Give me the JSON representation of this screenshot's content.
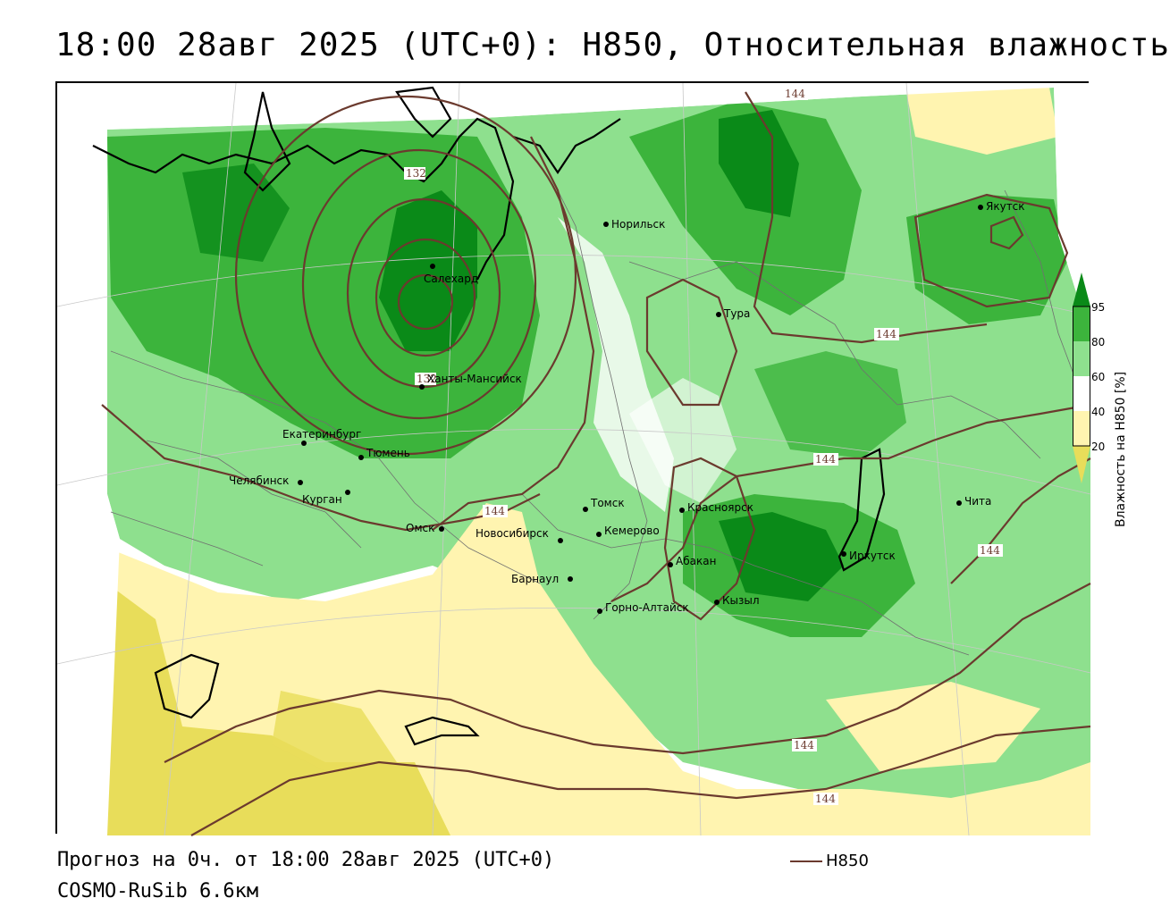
{
  "header": {
    "title": "18:00 28авг 2025 (UTC+0): H850, Относительная влажность"
  },
  "footer": {
    "forecast": "Прогноз на 0ч. от 18:00 28авг 2025 (UTC+0)",
    "model": "COSMO-RuSib 6.6км",
    "legend_label": "H850"
  },
  "colorbar": {
    "title": "Влажность на H850 [%]",
    "ticks": [
      "95",
      "80",
      "60",
      "40",
      "20"
    ],
    "colors": [
      "#0a8a18",
      "#3cb43c",
      "#8ee08e",
      "#ffffff",
      "#fff4b0",
      "#e8dd5a"
    ]
  },
  "colors": {
    "contour": "#6b3a2e",
    "coast": "#000000",
    "border": "#808080"
  },
  "cities": [
    {
      "name": "Норильск"
    },
    {
      "name": "Салехард"
    },
    {
      "name": "Тура"
    },
    {
      "name": "Якутск"
    },
    {
      "name": "Ханты-Мансийск"
    },
    {
      "name": "Екатеринбург"
    },
    {
      "name": "Тюмень"
    },
    {
      "name": "Челябинск"
    },
    {
      "name": "Курган"
    },
    {
      "name": "Омск"
    },
    {
      "name": "Новосибирск"
    },
    {
      "name": "Томск"
    },
    {
      "name": "Кемерово"
    },
    {
      "name": "Красноярск"
    },
    {
      "name": "Барнаул"
    },
    {
      "name": "Абакан"
    },
    {
      "name": "Горно-Алтайск"
    },
    {
      "name": "Кызыл"
    },
    {
      "name": "Иркутск"
    },
    {
      "name": "Чита"
    }
  ],
  "contour_labels": [
    "144",
    "144",
    "144",
    "144",
    "144",
    "144",
    "144",
    "132",
    "132"
  ]
}
